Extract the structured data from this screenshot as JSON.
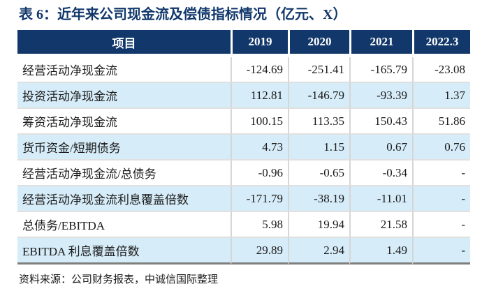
{
  "title": "表 6：近年来公司现金流及偿债指标情况（亿元、X）",
  "colors": {
    "navy": "#12386B",
    "row_alt": "#D6ECF8",
    "grid_horizontal": "#E0E0E0",
    "grid_vertical": "#D6D6D6",
    "bottom_line": "#7F7F7F",
    "text": "#1A1A1A"
  },
  "table": {
    "columns": [
      "项目",
      "2019",
      "2020",
      "2021",
      "2022.3"
    ],
    "rows": [
      {
        "label": "经营活动净现金流",
        "values": [
          "-124.69",
          "-251.41",
          "-165.79",
          "-23.08"
        ]
      },
      {
        "label": "投资活动净现金流",
        "values": [
          "112.81",
          "-146.79",
          "-93.39",
          "1.37"
        ]
      },
      {
        "label": "筹资活动净现金流",
        "values": [
          "100.15",
          "113.35",
          "150.43",
          "51.86"
        ]
      },
      {
        "label": "货币资金/短期债务",
        "values": [
          "4.73",
          "1.15",
          "0.67",
          "0.76"
        ]
      },
      {
        "label": "经营活动净现金流/总债务",
        "values": [
          "-0.96",
          "-0.65",
          "-0.34",
          "-"
        ]
      },
      {
        "label": "经营活动净现金流利息覆盖倍数",
        "values": [
          "-171.79",
          "-38.19",
          "-11.01",
          "-"
        ]
      },
      {
        "label": "总债务/EBITDA",
        "values": [
          "5.98",
          "19.94",
          "21.58",
          "-"
        ]
      },
      {
        "label": "EBITDA 利息覆盖倍数",
        "values": [
          "29.89",
          "2.94",
          "1.49",
          "-"
        ]
      }
    ]
  },
  "footer": {
    "source": "资料来源：公司财务报表，中诚信国际整理"
  }
}
